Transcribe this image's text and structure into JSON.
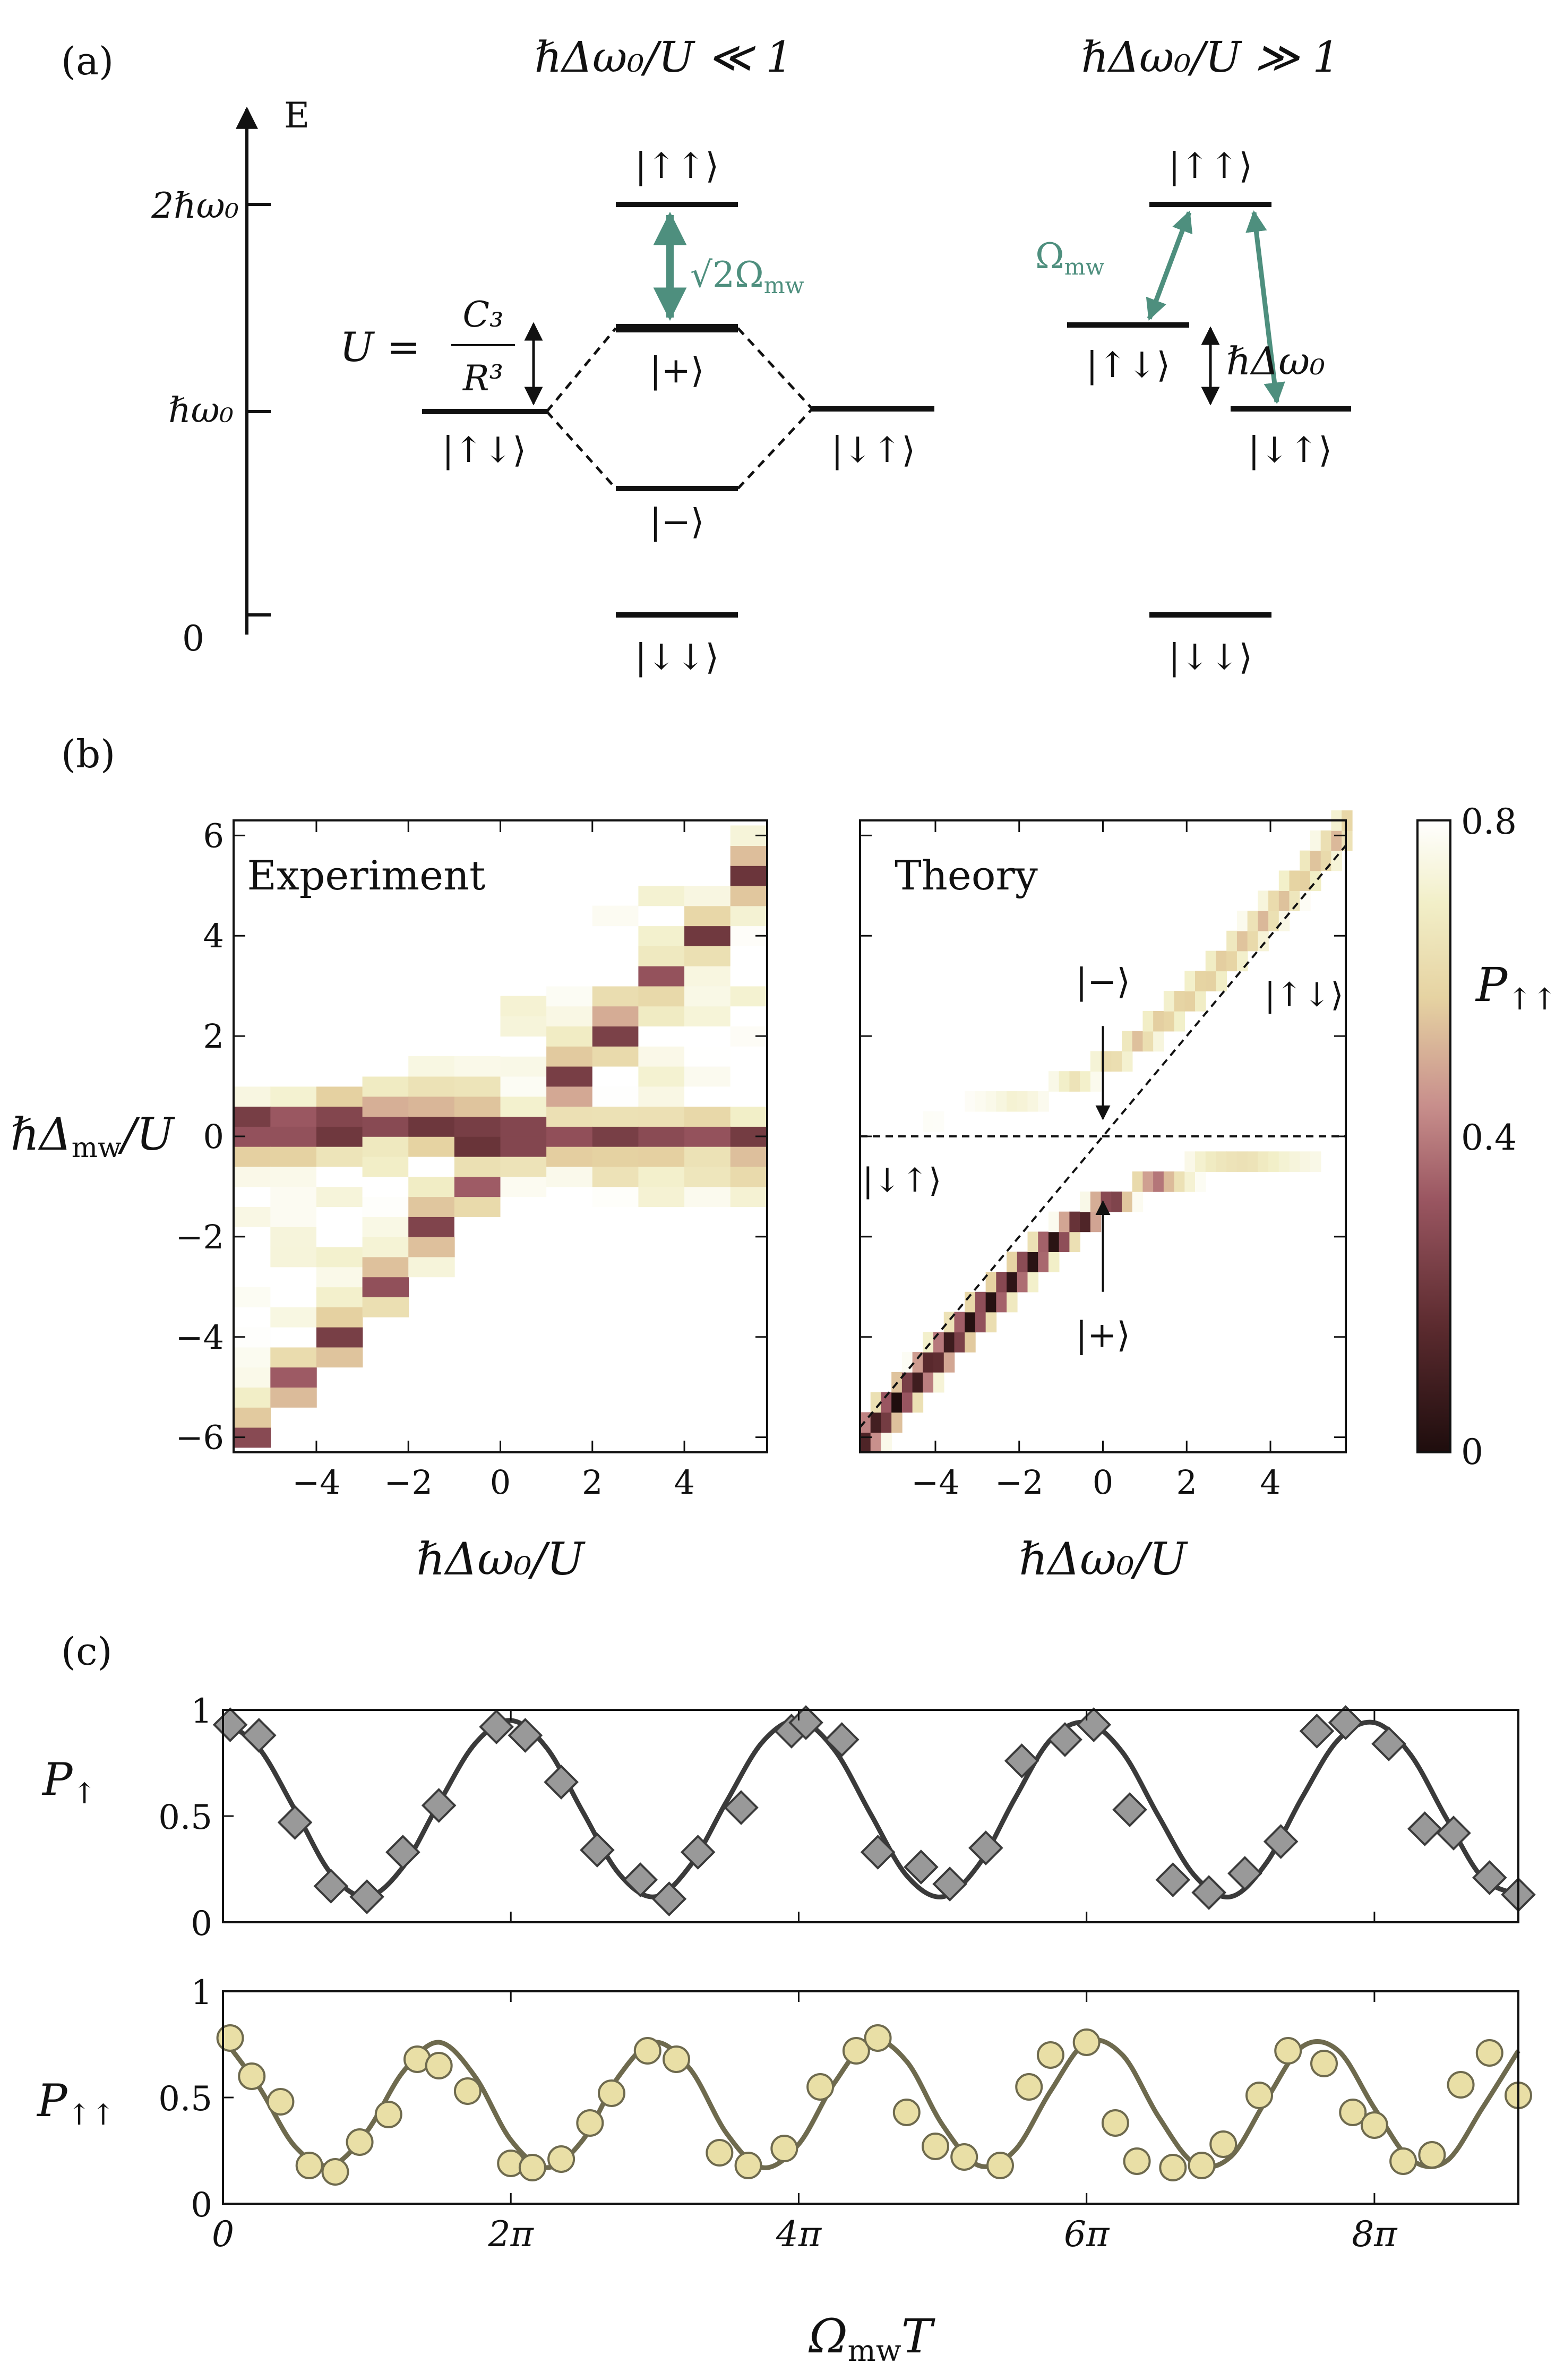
{
  "panel_a": {
    "label": "(a)",
    "axis_label": "E",
    "energy_ticks": [
      "2ℏω₀",
      "ℏω₀",
      "0"
    ],
    "title_left": "ℏΔω₀/U ≪ 1",
    "title_right": "ℏΔω₀/U ≫ 1",
    "left_levels": {
      "upup": "|↑↑⟩",
      "plus": "|+⟩",
      "minus": "|−⟩",
      "updown": "|↑↓⟩",
      "downup": "|↓↑⟩",
      "downdown": "|↓↓⟩"
    },
    "coupling_left": "√2Ω",
    "coupling_left_sub": "mw",
    "interaction_lhs": "U =",
    "interaction_num": "C₃",
    "interaction_den": "R³",
    "right_levels": {
      "upup": "|↑↑⟩",
      "updown": "|↑↓⟩",
      "downup": "|↓↑⟩",
      "downdown": "|↓↓⟩"
    },
    "coupling_right": "Ω",
    "coupling_right_sub": "mw",
    "detuning_label": "ℏΔω₀",
    "accent_color": "#4e8f7e"
  },
  "panel_b": {
    "label": "(b)",
    "experiment_title": "Experiment",
    "theory_title": "Theory",
    "ylabel": "ℏΔ",
    "ylabel_sub": "mw",
    "ylabel_tail": "/U",
    "xlabel": "ℏΔω₀/U",
    "theory_annotations": {
      "minus": "|−⟩",
      "plus": "|+⟩",
      "updown": "|↑↓⟩",
      "downup": "|↓↑⟩"
    },
    "colorbar_label": "P",
    "colorbar_label_sub": "↑↑",
    "colorbar_ticks": [
      "0.8",
      "0.4",
      "0"
    ]
  },
  "panel_c": {
    "label": "(c)",
    "ylabel_top": "P",
    "ylabel_top_sub": "↑",
    "ylabel_bottom": "P",
    "ylabel_bottom_sub": "↑↑",
    "xlabel": "Ω",
    "xlabel_sub": "mw",
    "xlabel_tail": "T",
    "top_color": "#3a3a3a",
    "top_marker_color": "#999999",
    "bottom_color": "#6e6a4e",
    "bottom_marker_color": "#e9dfa6"
  },
  "chart_data": [
    {
      "type": "heatmap",
      "title": "Experiment",
      "xlabel": "ℏΔω₀/U",
      "ylabel": "ℏΔmw/U",
      "xlim": [
        -5.8,
        5.8
      ],
      "ylim": [
        -6.3,
        6.3
      ],
      "xticks": [
        -4,
        -2,
        0,
        2,
        4
      ],
      "yticks": [
        -6,
        -4,
        -2,
        0,
        2,
        4,
        6
      ],
      "xtick_labels": [
        "−4",
        "−2",
        "0",
        "2",
        "4"
      ],
      "ytick_labels": [
        "−6",
        "−4",
        "−2",
        "0",
        "2",
        "4",
        "6"
      ],
      "x_centers": [
        -5.5,
        -4.5,
        -3.5,
        -2.5,
        -1.5,
        -0.5,
        0.5,
        1.5,
        2.5,
        3.5,
        4.5,
        5.5
      ],
      "y_step": 0.4,
      "crossing_line_y": 0.2,
      "zero_line_y": 0,
      "measured_extent": {
        "-5.5": [
          -6.2,
          1.8
        ],
        "-4.5": [
          -5.4,
          1.8
        ],
        "-3.5": [
          -4.6,
          1.8
        ],
        "-2.5": [
          -3.6,
          1.8
        ],
        "-1.5": [
          -2.8,
          1.5
        ],
        "-0.5": [
          -2.0,
          1.3
        ],
        "0.5": [
          -1.6,
          2.6
        ],
        "1.5": [
          -1.4,
          3.8
        ],
        "2.5": [
          -1.4,
          4.6
        ],
        "3.5": [
          -1.4,
          5.4
        ],
        "4.5": [
          -1.4,
          6.0
        ],
        "5.5": [
          -1.4,
          6.2
        ]
      },
      "color_range": [
        0,
        0.8
      ],
      "colorbar_label": "P↑↑"
    },
    {
      "type": "heatmap",
      "title": "Theory",
      "xlabel": "ℏΔω₀/U",
      "ylabel": "ℏΔmw/U",
      "xlim": [
        -5.8,
        5.8
      ],
      "ylim": [
        -6.3,
        6.3
      ],
      "xticks": [
        -4,
        -2,
        0,
        2,
        4
      ],
      "xtick_labels": [
        "−4",
        "−2",
        "0",
        "2",
        "4"
      ],
      "yticks": [
        -6,
        -4,
        -2,
        0,
        2,
        4,
        6
      ],
      "x_step": 0.25,
      "y_step": 0.4,
      "dashed_lines": [
        {
          "x": [
            -5.8,
            5.8
          ],
          "y": [
            0,
            0
          ]
        },
        {
          "x": [
            -5.8,
            5.8
          ],
          "y": [
            -5.8,
            5.8
          ]
        }
      ],
      "branches": [
        {
          "name": "|+⟩",
          "relation": "y = (x − sqrt(x²+8))/2",
          "min_value": 0.0
        },
        {
          "name": "|−⟩",
          "relation": "y = (x + sqrt(x²+8))/2",
          "min_value": 0.55
        }
      ],
      "color_range": [
        0,
        0.8
      ],
      "colorbar_label": "P↑↑"
    },
    {
      "type": "line",
      "title": "",
      "ylabel": "P↑",
      "xlabel": "ΩmwT",
      "xlim": [
        0,
        9
      ],
      "ylim": [
        0,
        1
      ],
      "x_unit": "π",
      "xticks": [
        0,
        2,
        4,
        6,
        8
      ],
      "xtick_labels": [
        "0",
        "2π",
        "4π",
        "6π",
        "8π"
      ],
      "yticks": [
        0,
        0.5,
        1
      ],
      "ytick_labels": [
        "0",
        "0.5",
        "1"
      ],
      "series": [
        {
          "name": "fit",
          "style": "line",
          "x": [
            0,
            0.25,
            0.5,
            0.75,
            1,
            1.25,
            1.5,
            1.75,
            2,
            2.25,
            2.5,
            2.75,
            3,
            3.25,
            3.5,
            3.75,
            4,
            4.25,
            4.5,
            4.75,
            5,
            5.25,
            5.5,
            5.75,
            6,
            6.25,
            6.5,
            6.75,
            7,
            7.25,
            7.5,
            7.75,
            8,
            8.25,
            8.5,
            8.75,
            9
          ],
          "values": [
            0.95,
            0.82,
            0.53,
            0.23,
            0.12,
            0.26,
            0.56,
            0.84,
            0.95,
            0.82,
            0.52,
            0.23,
            0.12,
            0.27,
            0.57,
            0.85,
            0.95,
            0.81,
            0.51,
            0.22,
            0.12,
            0.27,
            0.58,
            0.86,
            0.94,
            0.8,
            0.5,
            0.22,
            0.12,
            0.28,
            0.59,
            0.86,
            0.94,
            0.79,
            0.49,
            0.21,
            0.13
          ]
        },
        {
          "name": "data",
          "style": "diamond",
          "x": [
            0.05,
            0.25,
            0.5,
            0.75,
            1.0,
            1.25,
            1.5,
            1.9,
            2.1,
            2.35,
            2.6,
            2.9,
            3.1,
            3.3,
            3.6,
            3.95,
            4.05,
            4.3,
            4.55,
            4.85,
            5.05,
            5.3,
            5.55,
            5.85,
            6.05,
            6.3,
            6.6,
            6.85,
            7.1,
            7.35,
            7.6,
            7.8,
            8.1,
            8.35,
            8.55,
            8.8,
            9.0
          ],
          "values": [
            0.93,
            0.88,
            0.47,
            0.17,
            0.12,
            0.33,
            0.55,
            0.92,
            0.88,
            0.66,
            0.34,
            0.2,
            0.11,
            0.33,
            0.54,
            0.9,
            0.94,
            0.86,
            0.33,
            0.26,
            0.18,
            0.35,
            0.76,
            0.86,
            0.93,
            0.53,
            0.2,
            0.14,
            0.23,
            0.38,
            0.9,
            0.94,
            0.84,
            0.44,
            0.42,
            0.21,
            0.13
          ]
        }
      ]
    },
    {
      "type": "line",
      "title": "",
      "ylabel": "P↑↑",
      "xlabel": "ΩmwT",
      "xlim": [
        0,
        9
      ],
      "ylim": [
        0,
        1
      ],
      "x_unit": "π",
      "xticks": [
        0,
        2,
        4,
        6,
        8
      ],
      "xtick_labels": [
        "0",
        "2π",
        "4π",
        "6π",
        "8π"
      ],
      "yticks": [
        0,
        0.5,
        1
      ],
      "ytick_labels": [
        "0",
        "0.5",
        "1"
      ],
      "series": [
        {
          "name": "fit",
          "style": "line",
          "x": [
            0,
            0.25,
            0.5,
            0.75,
            1,
            1.25,
            1.5,
            1.75,
            2,
            2.25,
            2.5,
            2.75,
            3,
            3.25,
            3.5,
            3.75,
            4,
            4.25,
            4.5,
            4.75,
            5,
            5.25,
            5.5,
            5.75,
            6,
            6.25,
            6.5,
            6.75,
            7,
            7.25,
            7.5,
            7.75,
            8,
            8.25,
            8.5,
            8.75,
            9
          ],
          "values": [
            0.78,
            0.55,
            0.27,
            0.18,
            0.34,
            0.62,
            0.76,
            0.6,
            0.3,
            0.17,
            0.3,
            0.6,
            0.76,
            0.63,
            0.33,
            0.17,
            0.28,
            0.57,
            0.77,
            0.67,
            0.37,
            0.18,
            0.25,
            0.53,
            0.76,
            0.7,
            0.41,
            0.19,
            0.22,
            0.49,
            0.74,
            0.72,
            0.45,
            0.21,
            0.2,
            0.45,
            0.72
          ]
        },
        {
          "name": "data",
          "style": "circle",
          "x": [
            0.05,
            0.2,
            0.4,
            0.6,
            0.78,
            0.95,
            1.15,
            1.35,
            1.5,
            1.7,
            2.0,
            2.15,
            2.35,
            2.55,
            2.7,
            2.95,
            3.15,
            3.45,
            3.65,
            3.9,
            4.15,
            4.4,
            4.55,
            4.75,
            4.95,
            5.15,
            5.4,
            5.6,
            5.75,
            6.0,
            6.2,
            6.35,
            6.6,
            6.8,
            6.95,
            7.2,
            7.4,
            7.65,
            7.85,
            8.0,
            8.2,
            8.4,
            8.6,
            8.8,
            9.0
          ],
          "values": [
            0.78,
            0.6,
            0.48,
            0.18,
            0.15,
            0.29,
            0.42,
            0.68,
            0.65,
            0.53,
            0.19,
            0.17,
            0.21,
            0.38,
            0.52,
            0.72,
            0.68,
            0.24,
            0.18,
            0.26,
            0.55,
            0.72,
            0.78,
            0.43,
            0.27,
            0.22,
            0.18,
            0.55,
            0.7,
            0.76,
            0.38,
            0.2,
            0.17,
            0.18,
            0.28,
            0.51,
            0.72,
            0.66,
            0.43,
            0.37,
            0.2,
            0.23,
            0.56,
            0.71,
            0.51
          ]
        }
      ]
    }
  ]
}
